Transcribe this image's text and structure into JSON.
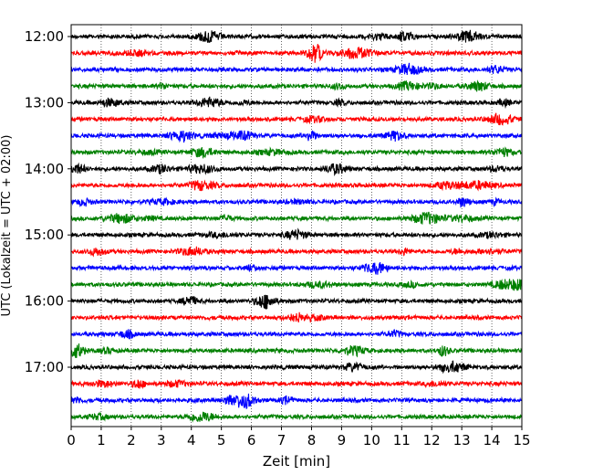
{
  "chart_data": {
    "type": "line",
    "subtype": "helicorder",
    "xlabel": "Zeit  [min]",
    "ylabel": "UTC (Lokalzeit = UTC + 02:00)",
    "xlim": [
      0,
      15
    ],
    "x_ticks": [
      "0",
      "1",
      "2",
      "3",
      "4",
      "5",
      "6",
      "7",
      "8",
      "9",
      "10",
      "11",
      "12",
      "13",
      "14",
      "15"
    ],
    "y_tick_labels": [
      "12:00",
      "13:00",
      "14:00",
      "15:00",
      "16:00",
      "17:00"
    ],
    "row_interval_minutes": 15,
    "row_colors_cycle": [
      "#000000",
      "#ff0000",
      "#0000ff",
      "#008000"
    ],
    "rows": [
      {
        "start": "12:00",
        "color": "#000000"
      },
      {
        "start": "12:15",
        "color": "#ff0000"
      },
      {
        "start": "12:30",
        "color": "#0000ff"
      },
      {
        "start": "12:45",
        "color": "#008000"
      },
      {
        "start": "13:00",
        "color": "#000000"
      },
      {
        "start": "13:15",
        "color": "#ff0000"
      },
      {
        "start": "13:30",
        "color": "#0000ff"
      },
      {
        "start": "13:45",
        "color": "#008000"
      },
      {
        "start": "14:00",
        "color": "#000000"
      },
      {
        "start": "14:15",
        "color": "#ff0000"
      },
      {
        "start": "14:30",
        "color": "#0000ff"
      },
      {
        "start": "14:45",
        "color": "#008000"
      },
      {
        "start": "15:00",
        "color": "#000000"
      },
      {
        "start": "15:15",
        "color": "#ff0000"
      },
      {
        "start": "15:30",
        "color": "#0000ff"
      },
      {
        "start": "15:45",
        "color": "#008000"
      },
      {
        "start": "16:00",
        "color": "#000000"
      },
      {
        "start": "16:15",
        "color": "#ff0000"
      },
      {
        "start": "16:30",
        "color": "#0000ff"
      },
      {
        "start": "16:45",
        "color": "#008000"
      },
      {
        "start": "17:00",
        "color": "#000000"
      },
      {
        "start": "17:15",
        "color": "#ff0000"
      },
      {
        "start": "17:30",
        "color": "#0000ff"
      },
      {
        "start": "17:45",
        "color": "#008000"
      }
    ],
    "grid": "vertical dotted at each minute"
  }
}
